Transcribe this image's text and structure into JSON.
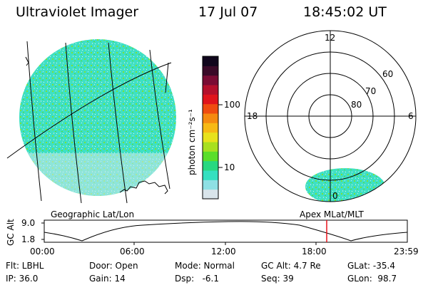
{
  "header": {
    "instrument": "Ultraviolet Imager",
    "date": "17 Jul 07",
    "time": "18:45:02 UT"
  },
  "colorbar": {
    "unit_label": "photon cm⁻²s⁻¹",
    "ticks": [
      "100",
      "10"
    ],
    "colors": [
      "#d9e4ea",
      "#8ee0e4",
      "#34e0c0",
      "#28d880",
      "#5ade2a",
      "#a8e020",
      "#e8e21c",
      "#f7b914",
      "#f58a10",
      "#ef4c10",
      "#e0141c",
      "#b4102c",
      "#7a0c34",
      "#3a0a28",
      "#10061c"
    ]
  },
  "left_image": {
    "label": "Geographic Lat/Lon",
    "fill_color": "#3ee0c4",
    "speckle_color": "#7be23a"
  },
  "polar_plot": {
    "label": "Apex MLat/MLT",
    "mlt_labels": {
      "top": "12",
      "left": "18",
      "right": "6",
      "bottom": "0"
    },
    "lat_labels": [
      "60",
      "70",
      "80"
    ]
  },
  "altitude_plot": {
    "ylabel": "GC Alt",
    "y_ticks": [
      "9.0",
      "1.8"
    ],
    "x_ticks": [
      "00:00",
      "06:00",
      "12:00",
      "18:00",
      "23:59"
    ],
    "current_time_marker": "18:45",
    "marker_color": "#e8141c"
  },
  "info": {
    "filter": "Flt: LBHL",
    "ip": "IP: 36.0",
    "door": "Door: Open",
    "gain": "Gain: 14",
    "mode": "Mode: Normal",
    "dsp": "Dsp:   -6.1",
    "gc_alt": "GC Alt: 4.7 Re",
    "seq": "Seq: 39",
    "glat": "GLat: -35.4",
    "glon": "GLon:  98.7"
  }
}
